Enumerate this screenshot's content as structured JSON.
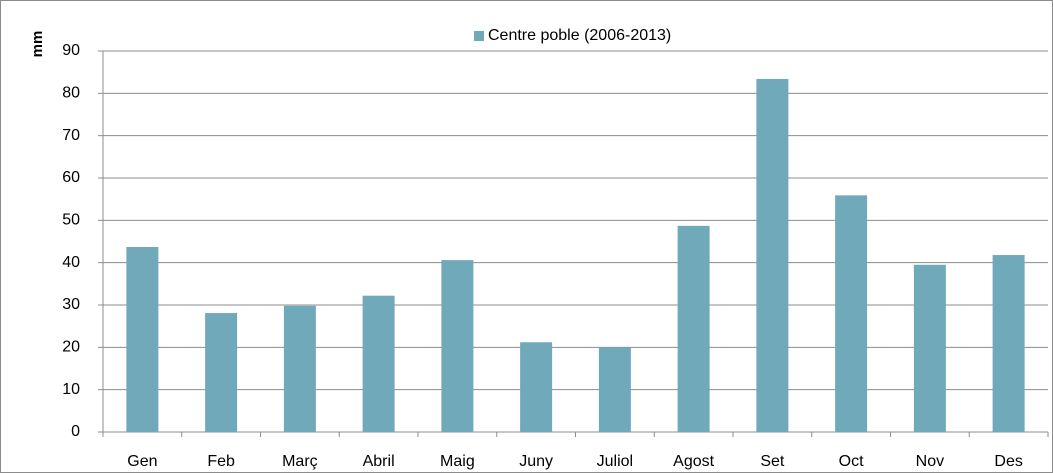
{
  "chart_data": {
    "type": "bar",
    "y_label": "mm",
    "categories": [
      "Gen",
      "Feb",
      "Març",
      "Abril",
      "Maig",
      "Juny",
      "Juliol",
      "Agost",
      "Set",
      "Oct",
      "Nov",
      "Des"
    ],
    "series": [
      {
        "name": "Centre poble (2006-2013)",
        "color": "#70a9b9",
        "values": [
          43.7,
          28.1,
          29.8,
          32.2,
          40.6,
          21.2,
          20,
          48.7,
          83.4,
          55.9,
          39.5,
          41.8
        ]
      }
    ],
    "ylim": [
      0,
      90
    ],
    "yticks": [
      0,
      10,
      20,
      30,
      40,
      50,
      60,
      70,
      80,
      90
    ],
    "grid": true,
    "legend": "top"
  }
}
